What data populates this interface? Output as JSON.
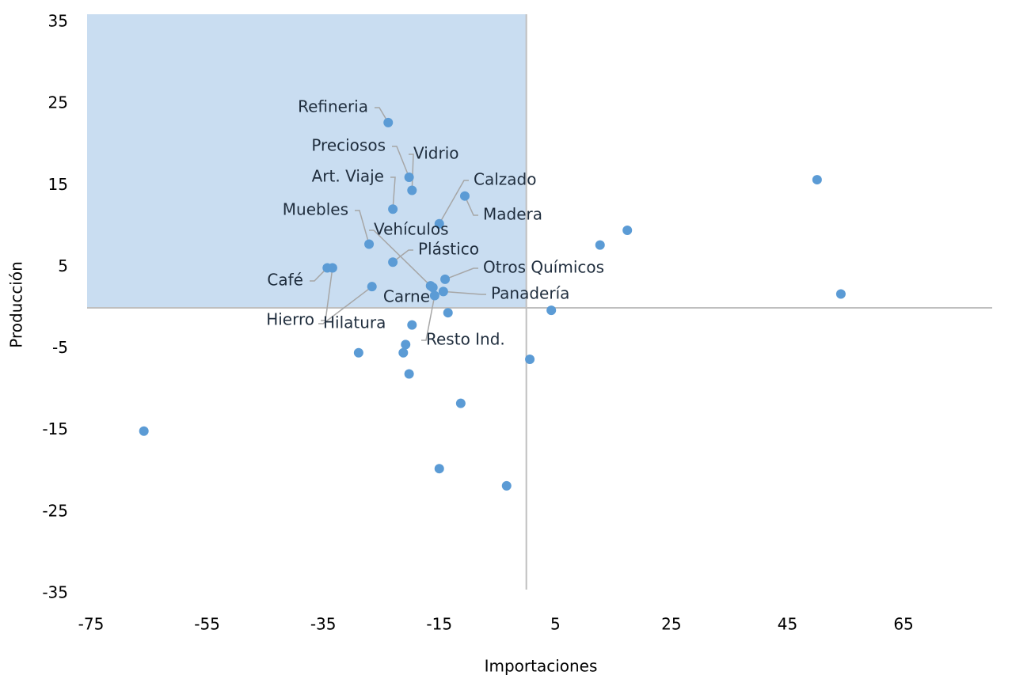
{
  "chart_data": {
    "type": "scatter",
    "x_label": "Importaciones",
    "y_label": "Producción",
    "x": [
      -23.8,
      -20.2,
      -19.7,
      -23.0,
      -15.0,
      -10.6,
      -27.1,
      -23.0,
      -16.5,
      -16.1,
      -14.0,
      -14.3,
      -15.8,
      -34.3,
      -33.4,
      -26.6,
      -13.5,
      -19.7,
      -20.8,
      -21.2,
      -28.9,
      -20.2,
      -11.3,
      -15.0,
      -3.4,
      -65.9,
      0.6,
      4.3,
      12.7,
      17.4,
      50.1,
      54.2
    ],
    "y": [
      22.7,
      16.0,
      14.4,
      12.1,
      10.3,
      13.7,
      7.8,
      5.6,
      2.7,
      2.5,
      3.5,
      2.0,
      1.5,
      4.9,
      4.9,
      2.6,
      -0.6,
      -2.1,
      -4.5,
      -5.5,
      -5.5,
      -8.1,
      -11.7,
      -19.7,
      -21.8,
      -15.1,
      -6.3,
      -0.3,
      7.7,
      9.5,
      15.7,
      1.7
    ],
    "labels": [
      "Refineria",
      "Preciosos",
      "Vidrio",
      "Art. Viaje",
      "Calzado",
      "Madera",
      "Muebles",
      "Plástico",
      "Vehículos",
      "Carne",
      "Otros Químicos",
      "Panadería",
      "Resto Ind.",
      "Café",
      "Hierro",
      "Hilatura",
      null,
      null,
      null,
      null,
      null,
      null,
      null,
      null,
      null,
      null,
      null,
      null,
      null,
      null,
      null,
      null
    ],
    "color": "#5b9bd5",
    "xlim": [
      -75,
      80
    ],
    "xticks": [
      -75,
      -55,
      -35,
      -15,
      5,
      25,
      45,
      65
    ],
    "ylim": [
      -35,
      35
    ],
    "yticks": [
      -35,
      -25,
      -15,
      -5,
      5,
      15,
      25,
      35
    ],
    "grid": false
  }
}
